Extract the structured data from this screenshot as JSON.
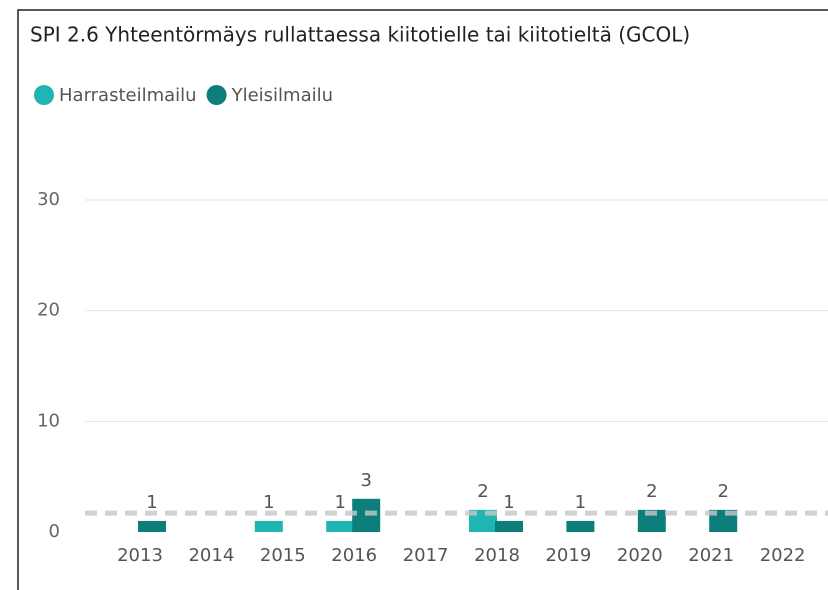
{
  "chart_data": {
    "type": "bar",
    "title": "SPI 2.6 Yhteentörmäys rullattaessa kiitotielle tai kiitotieltä (GCOL)",
    "categories": [
      "2013",
      "2014",
      "2015",
      "2016",
      "2017",
      "2018",
      "2019",
      "2020",
      "2021",
      "2022"
    ],
    "series": [
      {
        "name": "Harrasteilmailu",
        "color": "#1fb5b3",
        "values": [
          null,
          null,
          1,
          1,
          null,
          2,
          null,
          null,
          null,
          null
        ]
      },
      {
        "name": "Yleisilmailu",
        "color": "#0e7e7d",
        "values": [
          1,
          null,
          null,
          3,
          null,
          1,
          1,
          2,
          2,
          null
        ]
      }
    ],
    "reference_line": 1.7,
    "ylim": [
      0,
      30
    ],
    "yticks": [
      0,
      10,
      20,
      30
    ],
    "grid": true,
    "legend": "top-left"
  }
}
